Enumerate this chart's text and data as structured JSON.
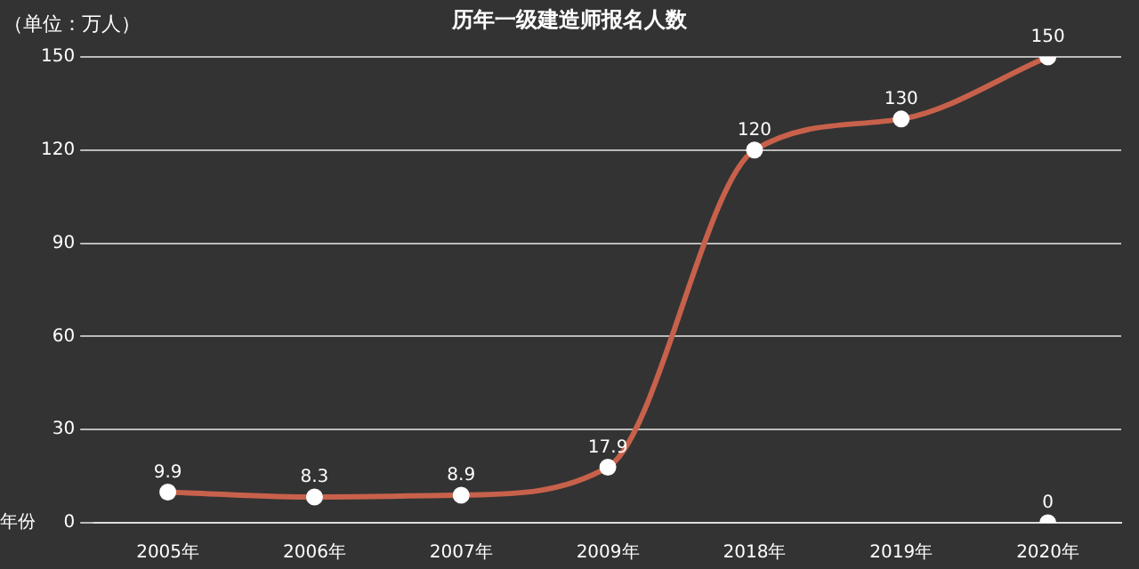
{
  "chart_data": {
    "type": "line",
    "title": "历年一级建造师报名人数",
    "ylabel": "（单位：万人）",
    "xlabel": "年份",
    "categories": [
      "2005年",
      "2006年",
      "2007年",
      "2009年",
      "2018年",
      "2019年",
      "2020年"
    ],
    "series": [
      {
        "color": "#c8614b",
        "values": [
          9.9,
          8.3,
          8.9,
          17.9,
          120,
          130,
          150
        ]
      },
      {
        "type": "scatter",
        "color": "#ffffff",
        "values": [
          null,
          null,
          null,
          null,
          null,
          null,
          0
        ]
      }
    ],
    "ylim": [
      0,
      150
    ],
    "yticks": [
      0,
      30,
      60,
      90,
      120,
      150
    ],
    "grid": "y",
    "marker": "circle",
    "data_labels": true,
    "legend": false
  }
}
